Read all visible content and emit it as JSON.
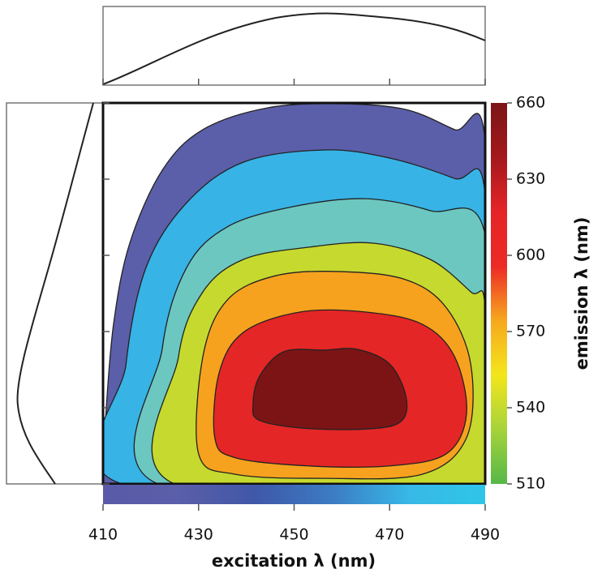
{
  "chart_data": {
    "type": "contour",
    "xlabel": "excitation λ (nm)",
    "ylabel": "emission λ (nm)",
    "xlim": [
      410,
      490
    ],
    "xticks": [
      410,
      430,
      450,
      470,
      490
    ],
    "ylim": [
      510,
      660
    ],
    "yticks": [
      510,
      540,
      570,
      600,
      630,
      660
    ],
    "colorbar_colors": [
      "#55b848",
      "#a6d33a",
      "#f3e61b",
      "#f7a81e",
      "#ec2a26",
      "#e52427",
      "#a4191c",
      "#7c1416"
    ],
    "strip_colors": [
      "#5a5aa8",
      "#5b5ea8",
      "#3f58a8",
      "#3c7cc2",
      "#38b8e6",
      "#2fc6e8"
    ],
    "contours": [
      {
        "color": "#5b5ea8",
        "x": [
          410,
          410.5,
          412.2,
          415.6,
          422.4,
          430.9,
          444.5,
          459.8,
          473.4,
          483.6,
          490,
          490
        ],
        "y": [
          510,
          534.6,
          572.9,
          604.8,
          633.5,
          649.5,
          658.1,
          659.7,
          657.4,
          649.5,
          644.7,
          510
        ]
      },
      {
        "color": "#37b3e6",
        "x": [
          413.9,
          414.8,
          419,
          427.5,
          439.4,
          456.4,
          470,
          483.5,
          490,
          490
        ],
        "y": [
          510,
          556.9,
          595.2,
          620.7,
          636.7,
          641.5,
          638.3,
          630.3,
          623.9,
          510
        ]
      },
      {
        "color": "#6cc7c0",
        "x": [
          421.5,
          422.4,
          427.5,
          436,
          449.6,
          464.9,
          478.5,
          490,
          490
        ],
        "y": [
          510,
          563.3,
          595.2,
          611.2,
          619.1,
          622.3,
          617.6,
          608,
          510
        ]
      },
      {
        "color": "#c6d92e",
        "x": [
          425,
          425.8,
          430.9,
          439.4,
          453,
          466.6,
          478.5,
          487,
          490,
          490
        ],
        "y": [
          510,
          560.1,
          585.6,
          598.4,
          603.2,
          604.8,
          598.4,
          585.6,
          579.3,
          510
        ]
      },
      {
        "color": "#f6a21f",
        "x": [
          430,
          430.9,
          436,
          446.2,
          459.8,
          473.4,
          481.9,
          487,
          486.1,
          476.8,
          456.4,
          437.7
        ],
        "y": [
          521.9,
          560.1,
          582.4,
          592,
          593.6,
          590.4,
          579.3,
          556.9,
          528.2,
          513.8,
          512.2,
          513.8
        ]
      },
      {
        "color": "#e42626",
        "x": [
          433.4,
          434.3,
          439.4,
          451.3,
          464.9,
          476.8,
          483.6,
          486.1,
          481.9,
          470,
          453,
          437.7
        ],
        "y": [
          528.2,
          553.7,
          569.7,
          577.7,
          577.7,
          572.9,
          560.1,
          537.8,
          521.9,
          517.1,
          517.1,
          520.3
        ]
      },
      {
        "color": "#7c1416",
        "x": [
          441.4,
          442.8,
          447.9,
          456.4,
          463.2,
          470,
          473.4,
          472.6,
          466.6,
          453,
          442.8
        ],
        "y": [
          541.4,
          552.5,
          562.1,
          562.7,
          563,
          557.2,
          544.6,
          535,
          531.8,
          531.8,
          535
        ]
      }
    ]
  }
}
